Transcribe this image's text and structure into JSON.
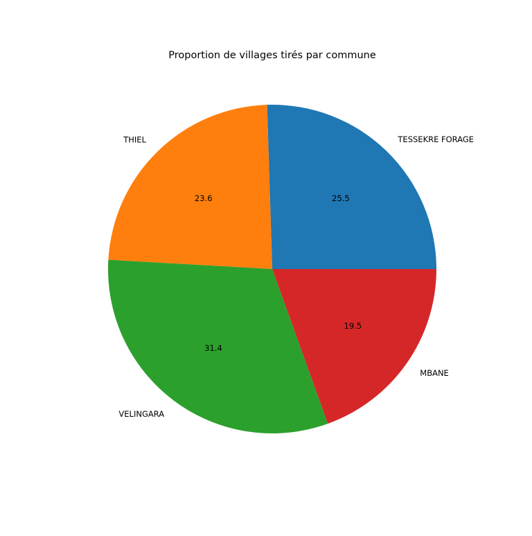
{
  "chart_data": {
    "type": "pie",
    "title": "Proportion de villages tirés par commune",
    "labels": [
      "TESSEKRE FORAGE",
      "THIEL",
      "VELINGARA",
      "MBANE"
    ],
    "values": [
      25.5,
      23.6,
      31.4,
      19.5
    ],
    "value_labels": [
      "25.5",
      "23.6",
      "31.4",
      "19.5"
    ],
    "colors": [
      "#1f77b4",
      "#ff7f0e",
      "#2ca02c",
      "#d62728"
    ],
    "start_angle_deg": 0,
    "direction": "counterclockwise",
    "legend": "none"
  }
}
